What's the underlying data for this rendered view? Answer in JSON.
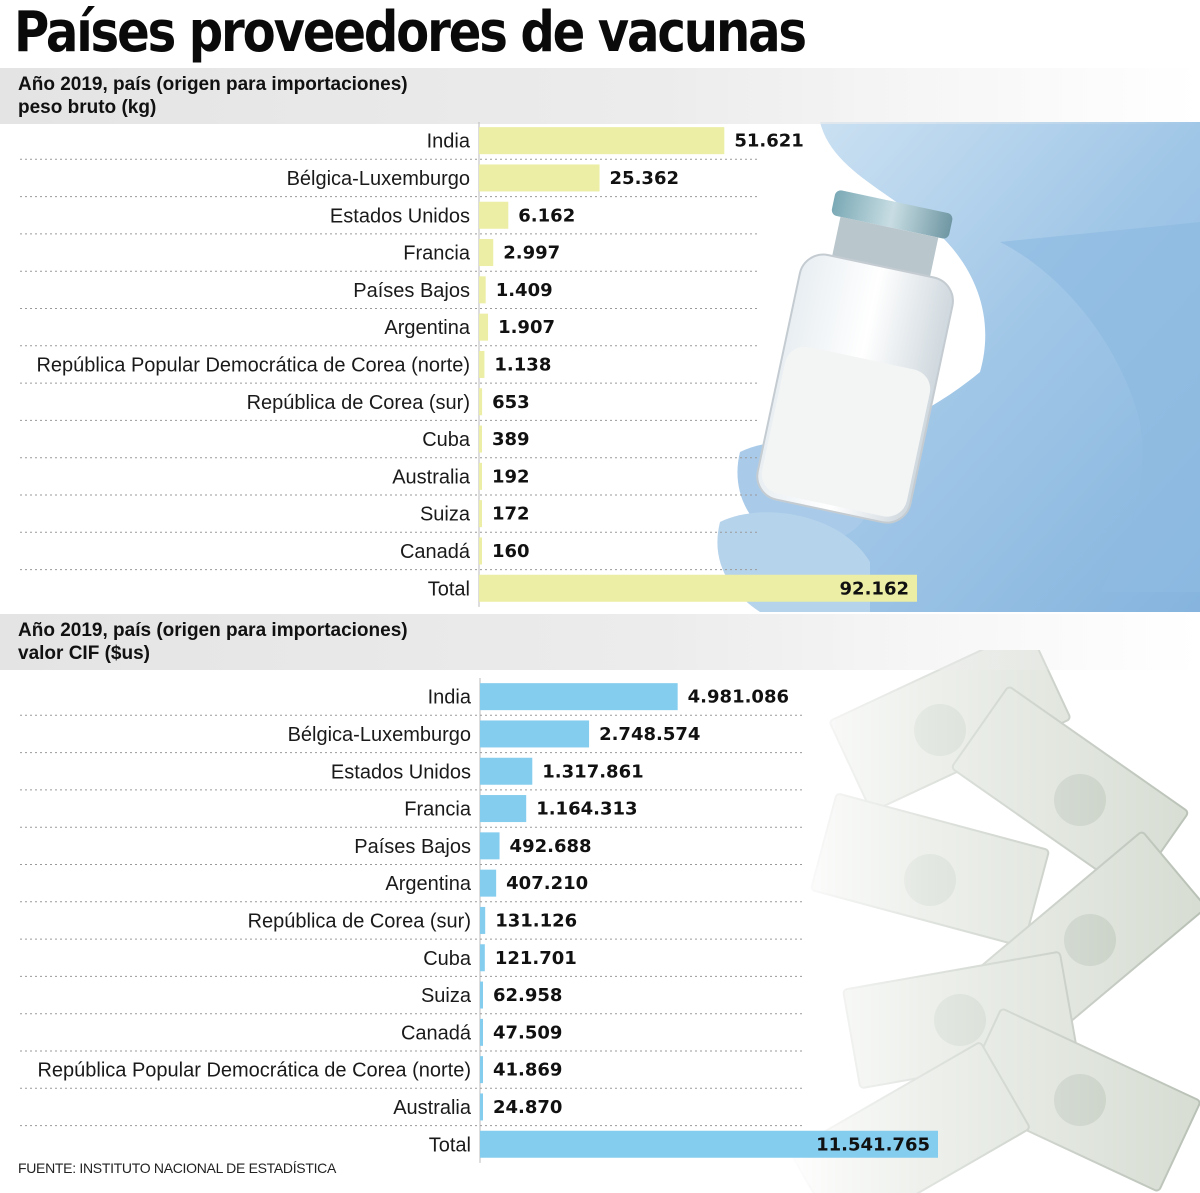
{
  "title": "Países proveedores de vacunas",
  "source": "FUENTE: INSTITUTO NACIONAL DE ESTADÍSTICA",
  "colors": {
    "weight_bar": "#ebeea4",
    "value_bar": "#85cdee",
    "band": "#e6e6e6"
  },
  "chart_data": [
    {
      "type": "bar",
      "orientation": "horizontal",
      "subtitle": [
        "Año 2019, país (origen para importaciones)",
        "peso bruto (kg)"
      ],
      "categories": [
        "India",
        "Bélgica-Luxemburgo",
        "Estados Unidos",
        "Francia",
        "Países Bajos",
        "Argentina",
        "República Popular Democrática de Corea (norte)",
        "República de Corea (sur)",
        "Cuba",
        "Australia",
        "Suiza",
        "Canadá",
        "Total"
      ],
      "values": [
        51621,
        25362,
        6162,
        2997,
        1409,
        1907,
        1138,
        653,
        389,
        192,
        172,
        160,
        92162
      ],
      "value_labels": [
        "51.621",
        "25.362",
        "6.162",
        "2.997",
        "1.409",
        "1.907",
        "1.138",
        "653",
        "389",
        "192",
        "172",
        "160",
        "92.162"
      ]
    },
    {
      "type": "bar",
      "orientation": "horizontal",
      "subtitle": [
        "Año 2019, país (origen para importaciones)",
        "valor CIF ($us)"
      ],
      "categories": [
        "India",
        "Bélgica-Luxemburgo",
        "Estados Unidos",
        "Francia",
        "Países Bajos",
        "Argentina",
        "República de Corea (sur)",
        "Cuba",
        "Suiza",
        "Canadá",
        "República Popular Democrática de Corea (norte)",
        "Australia",
        "Total"
      ],
      "values": [
        4981086,
        2748574,
        1317861,
        1164313,
        492688,
        407210,
        131126,
        121701,
        62958,
        47509,
        41869,
        24870,
        11541765
      ],
      "value_labels": [
        "4.981.086",
        "2.748.574",
        "1.317.861",
        "1.164.313",
        "492.688",
        "407.210",
        "131.126",
        "121.701",
        "62.958",
        "47.509",
        "41.869",
        "24.870",
        "11.541.765"
      ]
    }
  ]
}
